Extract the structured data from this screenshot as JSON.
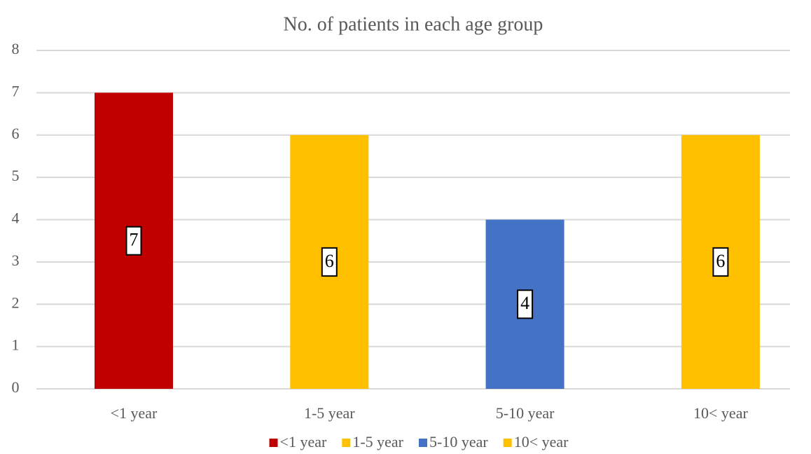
{
  "chart_data": {
    "type": "bar",
    "title": "No. of patients in each age group",
    "categories": [
      "<1 year",
      "1-5 year",
      "5-10 year",
      "10< year"
    ],
    "values": [
      7,
      6,
      4,
      6
    ],
    "colors": [
      "#c00000",
      "#ffc000",
      "#4472c4",
      "#ffc000"
    ],
    "ylim": [
      0,
      8
    ],
    "yticks": [
      0,
      1,
      2,
      3,
      4,
      5,
      6,
      7,
      8
    ],
    "grid": true,
    "legend": "bottom"
  }
}
